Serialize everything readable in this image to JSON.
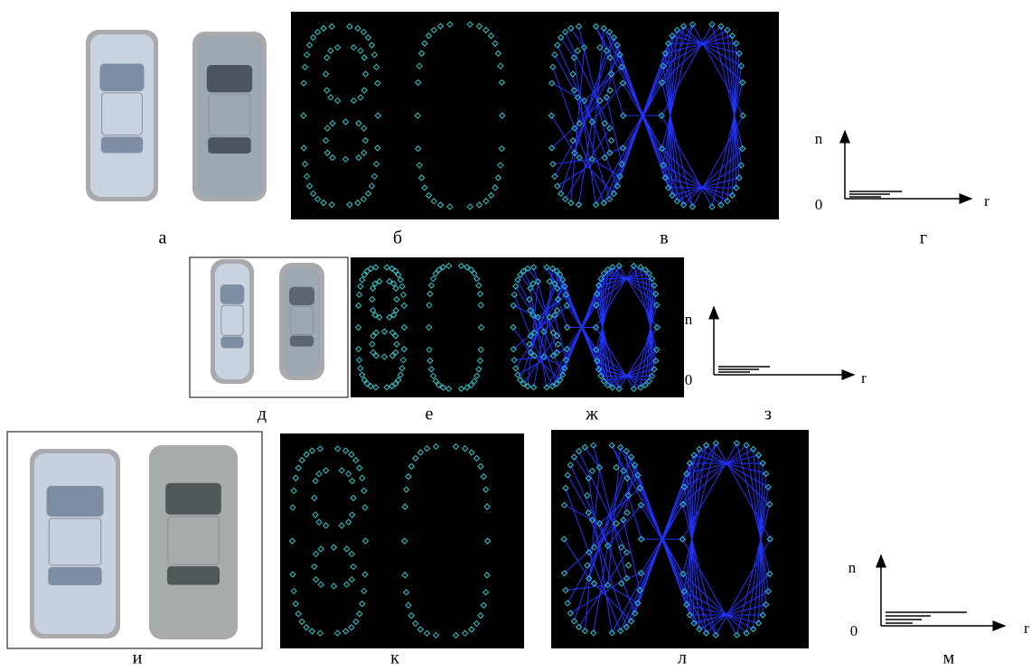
{
  "panels": [
    {
      "label": "а"
    },
    {
      "label": "б"
    },
    {
      "label": "в"
    },
    {
      "label": "г"
    },
    {
      "label": "д"
    },
    {
      "label": "е"
    },
    {
      "label": "ж"
    },
    {
      "label": "з"
    },
    {
      "label": "и"
    },
    {
      "label": "к"
    },
    {
      "label": "л"
    },
    {
      "label": "м"
    }
  ],
  "graphs": [
    {
      "y_label": "n",
      "origin": "0",
      "x_label": "r"
    },
    {
      "y_label": "n",
      "origin": "0",
      "x_label": "r"
    },
    {
      "y_label": "n",
      "origin": "0",
      "x_label": "r"
    }
  ]
}
